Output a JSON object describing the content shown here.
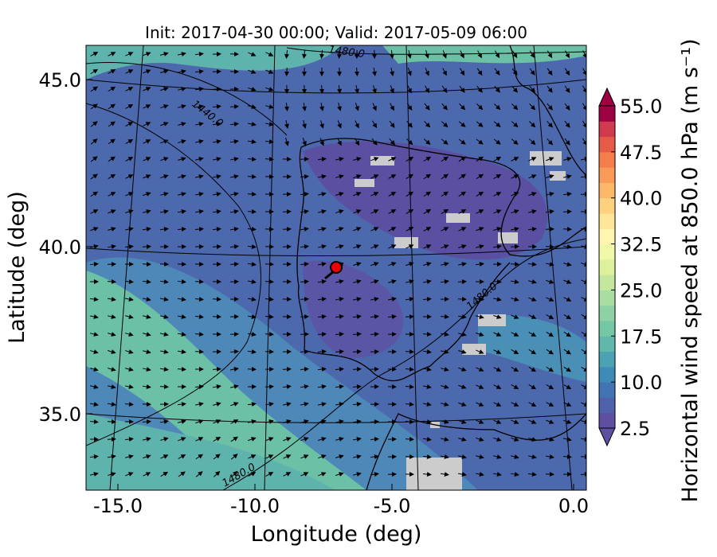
{
  "title": "Init: 2017-04-30 00:00; Valid: 2017-05-09 06:00",
  "x_label": "Longitude (deg)",
  "y_label": "Latitude (deg)",
  "x_ticks": [
    "-15.0",
    "-10.0",
    "-5.0",
    "0.0"
  ],
  "y_ticks": [
    "45.0",
    "40.0",
    "35.0"
  ],
  "contour_labels": [
    "1480.0",
    "1440.0",
    "1480.0",
    "1480.0"
  ],
  "colorbar": {
    "label": "Horizontal wind speed at 850.0 hPa (m s⁻¹)",
    "ticks": [
      "2.5",
      "10.0",
      "17.5",
      "25.0",
      "32.5",
      "40.0",
      "47.5",
      "55.0"
    ],
    "colors": [
      "#5e4fa2",
      "#4f61aa",
      "#4273b3",
      "#3f8bb7",
      "#4aa2b2",
      "#5fb8aa",
      "#74c7a5",
      "#8ed1a4",
      "#a9dda2",
      "#c4e79e",
      "#ddf19a",
      "#f1f8a8",
      "#fef5af",
      "#fee597",
      "#fdd17e",
      "#fdb768",
      "#fa9a58",
      "#f57d4a",
      "#e65b47",
      "#d1394f",
      "#9e0142"
    ]
  }
}
